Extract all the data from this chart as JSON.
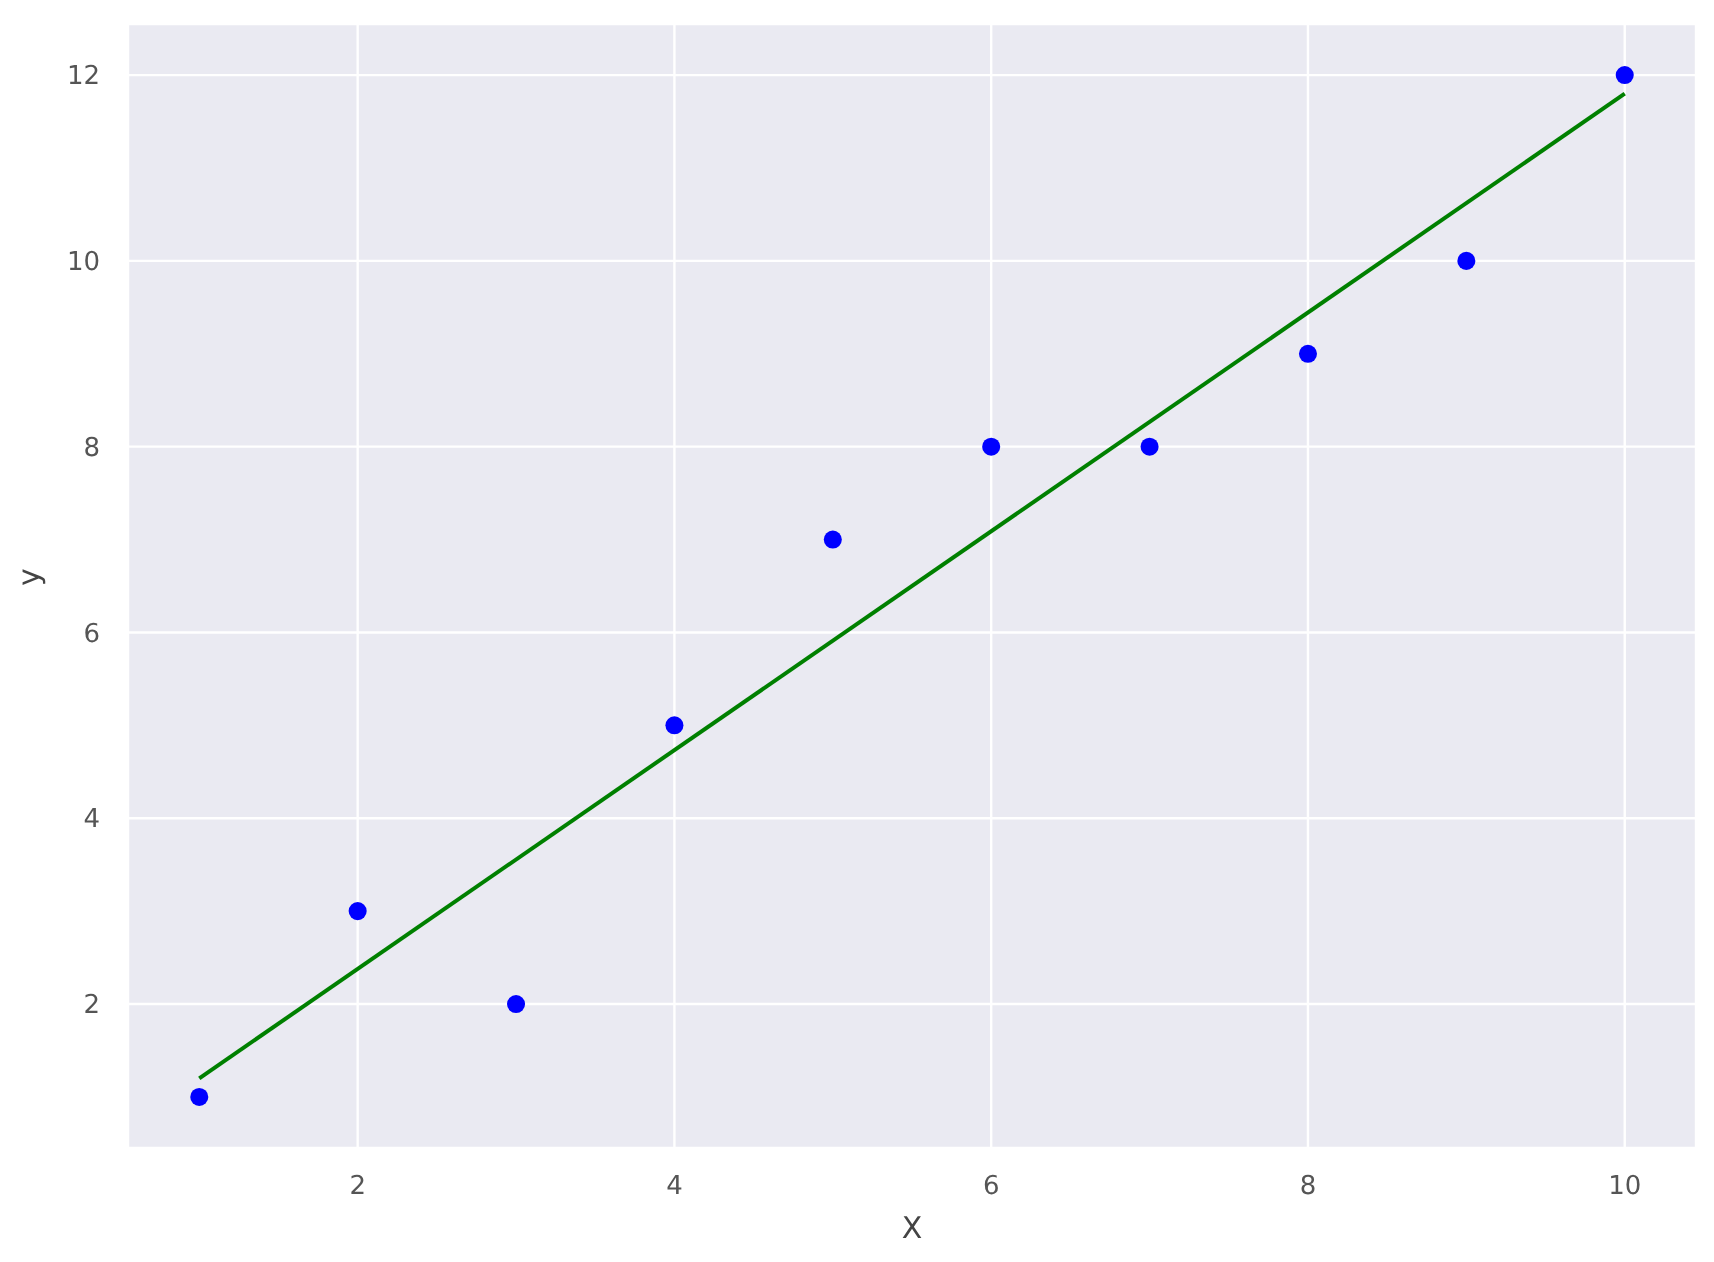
{
  "chart_data": {
    "type": "scatter",
    "xlabel": "X",
    "ylabel": "y",
    "x": [
      1,
      2,
      3,
      4,
      5,
      6,
      7,
      8,
      9,
      10
    ],
    "series": [
      {
        "color": "#0000ff",
        "marker": "circle",
        "values": [
          1,
          3,
          2,
          5,
          7,
          8,
          8,
          9,
          10,
          12
        ]
      },
      {
        "type": "line",
        "color": "#008000",
        "x": [
          1,
          10
        ],
        "values": [
          1.2,
          11.8
        ]
      }
    ],
    "xlim": [
      0.55,
      10.45
    ],
    "xticks": [
      2,
      4,
      6,
      8,
      10
    ],
    "ylim": [
      0.45,
      12.55
    ],
    "yticks": [
      2,
      4,
      6,
      8,
      10,
      12
    ],
    "grid": true,
    "line_style": "solid"
  }
}
